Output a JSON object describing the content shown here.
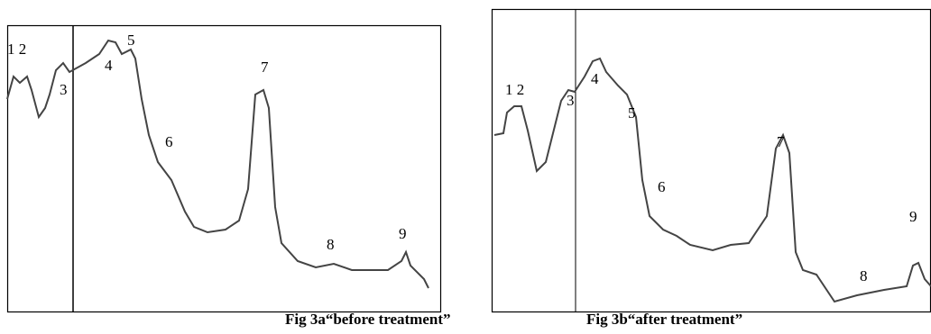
{
  "figures": [
    {
      "peaks": [
        "1 2",
        "3",
        "4",
        "5",
        "6",
        "7",
        "8",
        "9"
      ],
      "caption": "Fig 3a“before treatment”"
    },
    {
      "peaks": [
        "1 2",
        "3",
        "4",
        "5",
        "6",
        "7",
        "8",
        "9"
      ],
      "caption": "Fig 3b“after treatment”"
    }
  ]
}
